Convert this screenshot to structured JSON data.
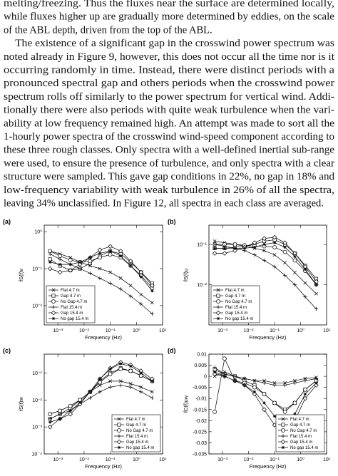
{
  "text": {
    "paragraphs": [
      [
        "melting/freezing. Thus the fluxes near the surface are determined locally,",
        "while fluxes higher up are gradually more determined by eddies, on the scale",
        "of the ABL depth, driven from the top of the ABL."
      ],
      [
        "The existence of a significant gap in the crosswind power spectrum was",
        "noted already in Figure 9, however, this does not occur all the time nor is it",
        "occurring randomly in time. Instead, there were distinct periods with a",
        "pronounced spectral gap and others periods when the crosswind power",
        "spectrum rolls off similarly to the power spectrum for vertical wind. Addi-",
        "tionally there were also periods with quite weak turbulence when the vari-",
        "ability at low frequency remained high. An attempt was made to sort all the",
        "1-hourly power spectra of the crosswind wind-speed component according to",
        "these three rough classes. Only spectra with a well-defined inertial sub-range",
        "were used, to ensure the presence of turbulence, and only spectra with a clear",
        "structure were sampled. This gave gap conditions in 22%, no gap in 18% and",
        "low-frequency variability with weak turbulence in 26% of all the spectra,",
        "leaving 34% unclassified. In Figure 12, all spectra in each class are averaged."
      ]
    ]
  },
  "chart_data": [
    {
      "type": "line",
      "label": "(a)",
      "xlabel": "Frequency (Hz)",
      "ylabel": "fS(f)v",
      "xscale": "log",
      "yscale": "log",
      "xlim": [
        0.0003,
        10
      ],
      "ylim": [
        0.003,
        1.5
      ],
      "xticks": [
        {
          "value": 0.001,
          "label": "10⁻³"
        },
        {
          "value": 0.01,
          "label": "10⁻²"
        },
        {
          "value": 0.1,
          "label": "10⁻¹"
        },
        {
          "value": 1,
          "label": "10⁰"
        },
        {
          "value": 10,
          "label": "10¹"
        }
      ],
      "yticks": [
        {
          "value": 0.01,
          "label": "10⁻²"
        },
        {
          "value": 0.1,
          "label": "10⁻¹"
        },
        {
          "value": 1,
          "label": "10⁰"
        }
      ],
      "legend": "lower left",
      "grid": false,
      "x": [
        0.0005,
        0.0012,
        0.003,
        0.007,
        0.017,
        0.04,
        0.1,
        0.25,
        0.6,
        1.5,
        4
      ],
      "series": [
        {
          "name": "Flat  4.7 m",
          "color": "#000000",
          "marker": "x",
          "values": [
            0.3,
            0.25,
            0.2,
            0.15,
            0.12,
            0.1,
            0.08,
            0.055,
            0.035,
            0.02,
            0.012
          ]
        },
        {
          "name": "Gap  4.7 m",
          "color": "#000000",
          "marker": "square",
          "values": [
            0.18,
            0.12,
            0.09,
            0.1,
            0.14,
            0.22,
            0.3,
            0.25,
            0.15,
            0.08,
            0.04
          ]
        },
        {
          "name": "No Gap  4.7 m",
          "color": "#000000",
          "marker": "circle",
          "values": [
            0.3,
            0.22,
            0.17,
            0.15,
            0.16,
            0.2,
            0.24,
            0.2,
            0.12,
            0.065,
            0.03
          ]
        },
        {
          "name": "Flat  15.4 m",
          "color": "#000000",
          "marker": "plus",
          "values": [
            0.25,
            0.18,
            0.13,
            0.1,
            0.075,
            0.055,
            0.04,
            0.028,
            0.018,
            0.011,
            0.006
          ]
        },
        {
          "name": "Gap  15.4 m",
          "color": "#000000",
          "marker": "diamond",
          "values": [
            0.1,
            0.08,
            0.09,
            0.13,
            0.2,
            0.32,
            0.4,
            0.3,
            0.16,
            0.08,
            0.035
          ]
        },
        {
          "name": "No gap  15.4 m",
          "color": "#000000",
          "marker": "star",
          "values": [
            0.15,
            0.13,
            0.13,
            0.15,
            0.2,
            0.26,
            0.3,
            0.22,
            0.12,
            0.06,
            0.025
          ]
        }
      ]
    },
    {
      "type": "line",
      "label": "(b)",
      "xlabel": "Frequency (Hz)",
      "ylabel": "fS(f)u",
      "xscale": "log",
      "yscale": "log",
      "xlim": [
        0.0003,
        10
      ],
      "ylim": [
        0.001,
        0.3
      ],
      "xticks": [
        {
          "value": 0.001,
          "label": "10⁻³"
        },
        {
          "value": 0.01,
          "label": "10⁻²"
        },
        {
          "value": 0.1,
          "label": "10⁻¹"
        },
        {
          "value": 1,
          "label": "10⁰"
        },
        {
          "value": 10,
          "label": "10¹"
        }
      ],
      "yticks": [
        {
          "value": 0.01,
          "label": "10⁻²"
        },
        {
          "value": 0.1,
          "label": "10⁻¹"
        }
      ],
      "legend": "lower left",
      "grid": false,
      "x": [
        0.0005,
        0.0012,
        0.003,
        0.007,
        0.017,
        0.04,
        0.1,
        0.25,
        0.6,
        1.5,
        4
      ],
      "series": [
        {
          "name": "Flat  4.7 m",
          "color": "#000000",
          "marker": "x",
          "values": [
            0.12,
            0.11,
            0.1,
            0.09,
            0.08,
            0.07,
            0.055,
            0.035,
            0.02,
            0.011,
            0.006
          ]
        },
        {
          "name": "Gap  4.7 m",
          "color": "#000000",
          "marker": "square",
          "values": [
            0.08,
            0.08,
            0.085,
            0.09,
            0.1,
            0.12,
            0.13,
            0.1,
            0.06,
            0.03,
            0.014
          ]
        },
        {
          "name": "No Gap  4.7 m",
          "color": "#000000",
          "marker": "circle",
          "values": [
            0.1,
            0.1,
            0.1,
            0.095,
            0.09,
            0.09,
            0.085,
            0.065,
            0.04,
            0.022,
            0.01
          ]
        },
        {
          "name": "Flat  15.4 m",
          "color": "#000000",
          "marker": "plus",
          "values": [
            0.1,
            0.09,
            0.08,
            0.07,
            0.055,
            0.04,
            0.028,
            0.017,
            0.01,
            0.005,
            0.0025
          ]
        },
        {
          "name": "Gap  15.4 m",
          "color": "#000000",
          "marker": "diamond",
          "values": [
            0.06,
            0.06,
            0.07,
            0.085,
            0.11,
            0.14,
            0.15,
            0.11,
            0.06,
            0.028,
            0.012
          ]
        },
        {
          "name": "No gap  15.4 m",
          "color": "#000000",
          "marker": "star",
          "values": [
            0.08,
            0.08,
            0.08,
            0.08,
            0.085,
            0.1,
            0.11,
            0.085,
            0.05,
            0.024,
            0.01
          ]
        }
      ]
    },
    {
      "type": "line",
      "label": "(c)",
      "xlabel": "Frequency (Hz)",
      "ylabel": "fS(f)w",
      "xscale": "log",
      "yscale": "log",
      "xlim": [
        0.0003,
        10
      ],
      "ylim": [
        0.0001,
        0.5
      ],
      "xticks": [
        {
          "value": 0.001,
          "label": "10⁻³"
        },
        {
          "value": 0.01,
          "label": "10⁻²"
        },
        {
          "value": 0.1,
          "label": "10⁻¹"
        },
        {
          "value": 1,
          "label": "10⁰"
        },
        {
          "value": 10,
          "label": "10¹"
        }
      ],
      "yticks": [
        {
          "value": 0.0001,
          "label": "10⁻⁴"
        },
        {
          "value": 0.001,
          "label": "10⁻³"
        },
        {
          "value": 0.01,
          "label": "10⁻²"
        },
        {
          "value": 0.1,
          "label": "10⁻¹"
        }
      ],
      "legend": "lower right",
      "grid": false,
      "x": [
        0.0005,
        0.0012,
        0.003,
        0.007,
        0.017,
        0.04,
        0.1,
        0.25,
        0.6,
        1.5,
        4
      ],
      "series": [
        {
          "name": "Flat  4.7 m",
          "color": "#000000",
          "marker": "x",
          "values": [
            0.003,
            0.004,
            0.006,
            0.01,
            0.02,
            0.035,
            0.05,
            0.05,
            0.04,
            0.03,
            0.02
          ]
        },
        {
          "name": "Gap  4.7 m",
          "color": "#000000",
          "marker": "square",
          "values": [
            0.002,
            0.003,
            0.005,
            0.01,
            0.02,
            0.05,
            0.1,
            0.15,
            0.12,
            0.08,
            0.05
          ]
        },
        {
          "name": "No Gap  4.7 m",
          "color": "#000000",
          "marker": "circle",
          "values": [
            0.003,
            0.004,
            0.006,
            0.01,
            0.02,
            0.045,
            0.09,
            0.14,
            0.12,
            0.08,
            0.05
          ]
        },
        {
          "name": "Flat  15.4 m",
          "color": "#000000",
          "marker": "plus",
          "values": [
            0.002,
            0.003,
            0.004,
            0.007,
            0.012,
            0.02,
            0.03,
            0.035,
            0.03,
            0.02,
            0.012
          ]
        },
        {
          "name": "Gap  15.4 m",
          "color": "#000000",
          "marker": "diamond",
          "values": [
            0.001,
            0.002,
            0.003,
            0.007,
            0.02,
            0.06,
            0.15,
            0.25,
            0.2,
            0.12,
            0.06
          ]
        },
        {
          "name": "No gap  15.4 m",
          "color": "#000000",
          "marker": "star",
          "values": [
            0.0015,
            0.002,
            0.004,
            0.008,
            0.02,
            0.06,
            0.14,
            0.22,
            0.18,
            0.1,
            0.05
          ]
        }
      ]
    },
    {
      "type": "line",
      "label": "(d)",
      "xlabel": "Frequency (Hz)",
      "ylabel": "fC(f)uw",
      "xscale": "log",
      "yscale": "linear",
      "xlim": [
        0.0003,
        10
      ],
      "ylim": [
        -0.035,
        0.01
      ],
      "xticks": [
        {
          "value": 0.001,
          "label": "10⁻³"
        },
        {
          "value": 0.01,
          "label": "10⁻²"
        },
        {
          "value": 0.1,
          "label": "10⁻¹"
        },
        {
          "value": 1,
          "label": "10⁰"
        },
        {
          "value": 10,
          "label": "10¹"
        }
      ],
      "yticks": [
        0.01,
        0.005,
        0,
        -0.005,
        -0.01,
        -0.015,
        -0.02,
        -0.025,
        -0.03,
        -0.035
      ],
      "legend": "lower right",
      "grid": false,
      "x": [
        0.0005,
        0.0012,
        0.003,
        0.007,
        0.017,
        0.04,
        0.1,
        0.25,
        0.6,
        1.5,
        4
      ],
      "series": [
        {
          "name": "Flat  4.7 m",
          "color": "#000000",
          "marker": "x",
          "values": [
            0,
            0.002,
            0,
            -0.001,
            -0.002,
            -0.002,
            -0.003,
            -0.003,
            -0.002,
            -0.001,
            -0.0005
          ]
        },
        {
          "name": "Gap  4.7 m",
          "color": "#000000",
          "marker": "square",
          "values": [
            0.003,
            0.001,
            0,
            -0.002,
            -0.004,
            -0.008,
            -0.012,
            -0.015,
            -0.012,
            -0.006,
            -0.002
          ]
        },
        {
          "name": "No Gap  4.7 m",
          "color": "#000000",
          "marker": "circle",
          "values": [
            -0.016,
            0.008,
            -0.002,
            -0.003,
            -0.005,
            -0.008,
            -0.012,
            -0.016,
            -0.012,
            -0.006,
            -0.002
          ]
        },
        {
          "name": "Flat  15.4 m",
          "color": "#000000",
          "marker": "plus",
          "values": [
            0.004,
            0.001,
            0,
            -0.001,
            -0.002,
            -0.003,
            -0.004,
            -0.004,
            -0.003,
            -0.002,
            -0.001
          ]
        },
        {
          "name": "Gap  15.4 m",
          "color": "#000000",
          "marker": "diamond",
          "values": [
            0.001,
            0,
            -0.002,
            -0.004,
            -0.008,
            -0.015,
            -0.022,
            -0.026,
            -0.02,
            -0.01,
            -0.004
          ]
        },
        {
          "name": "No gap  15.4 m",
          "color": "#000000",
          "marker": "star",
          "values": [
            0.002,
            0,
            -0.002,
            -0.004,
            -0.007,
            -0.012,
            -0.018,
            -0.022,
            -0.017,
            -0.008,
            -0.003
          ]
        }
      ]
    }
  ]
}
